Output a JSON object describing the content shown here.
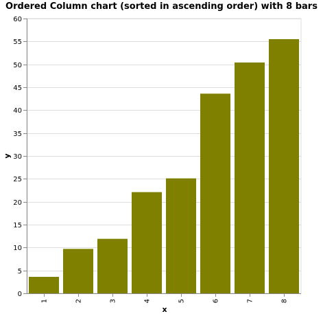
{
  "chart_data": {
    "type": "bar",
    "title": "Ordered Column chart (sorted in ascending order) with 8 bars",
    "xlabel": "x",
    "ylabel": "y",
    "categories": [
      "1",
      "2",
      "3",
      "4",
      "5",
      "6",
      "7",
      "8"
    ],
    "values": [
      3.6,
      9.7,
      11.9,
      22.1,
      25.1,
      43.6,
      50.4,
      55.5
    ],
    "ylim": [
      0,
      60
    ],
    "y_ticks": [
      "0",
      "5",
      "10",
      "15",
      "20",
      "25",
      "30",
      "35",
      "40",
      "45",
      "50",
      "55",
      "60"
    ],
    "grid": true,
    "legend": "none",
    "bar_color": "#808000",
    "grid_color": "#dddddd",
    "axis_color": "#888888"
  }
}
